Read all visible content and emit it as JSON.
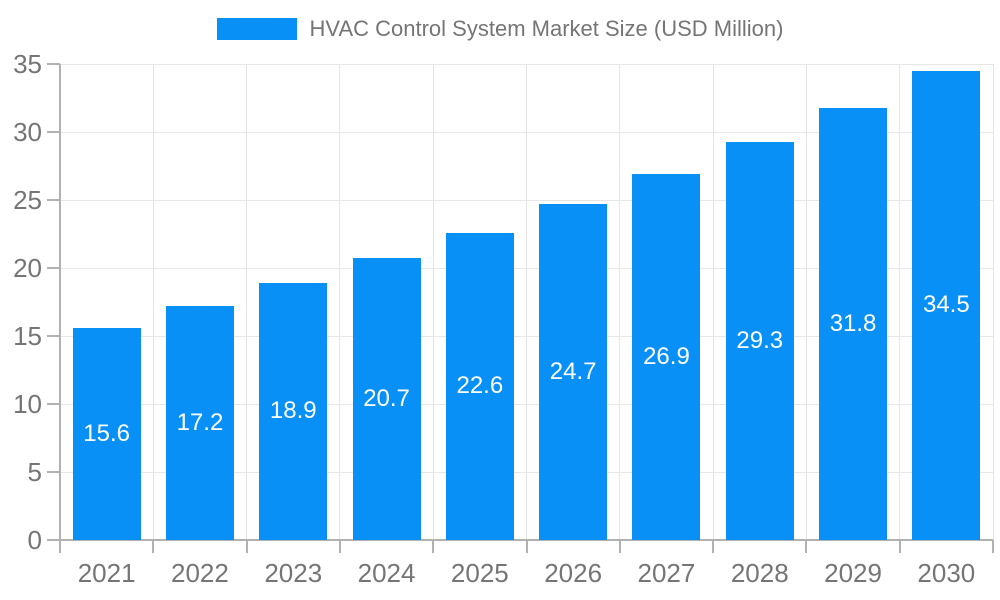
{
  "chart_data": {
    "type": "bar",
    "title": "HVAC Control System Market Size (USD Million)",
    "legend_entries": [
      "HVAC Control System Market Size (USD Million)"
    ],
    "legend_position": "top",
    "categories": [
      "2021",
      "2022",
      "2023",
      "2024",
      "2025",
      "2026",
      "2027",
      "2028",
      "2029",
      "2030"
    ],
    "values": [
      15.6,
      17.2,
      18.9,
      20.7,
      22.6,
      24.7,
      26.9,
      29.3,
      31.8,
      34.5
    ],
    "bar_value_labels": [
      "15.6",
      "17.2",
      "18.9",
      "20.7",
      "22.6",
      "24.7",
      "26.9",
      "29.3",
      "31.8",
      "34.5"
    ],
    "xlabel": "",
    "ylabel": "",
    "ylim": [
      0,
      35
    ],
    "yticks": [
      0,
      5,
      10,
      15,
      20,
      25,
      30,
      35
    ],
    "grid": true,
    "colors": {
      "bar": "#0890f7",
      "bar_label_text": "#ffffff",
      "axis_text": "#757575",
      "legend_text": "#757575",
      "gridline": "#e6e6e6",
      "axis_line": "#b1b1b1",
      "background": "#ffffff"
    }
  }
}
